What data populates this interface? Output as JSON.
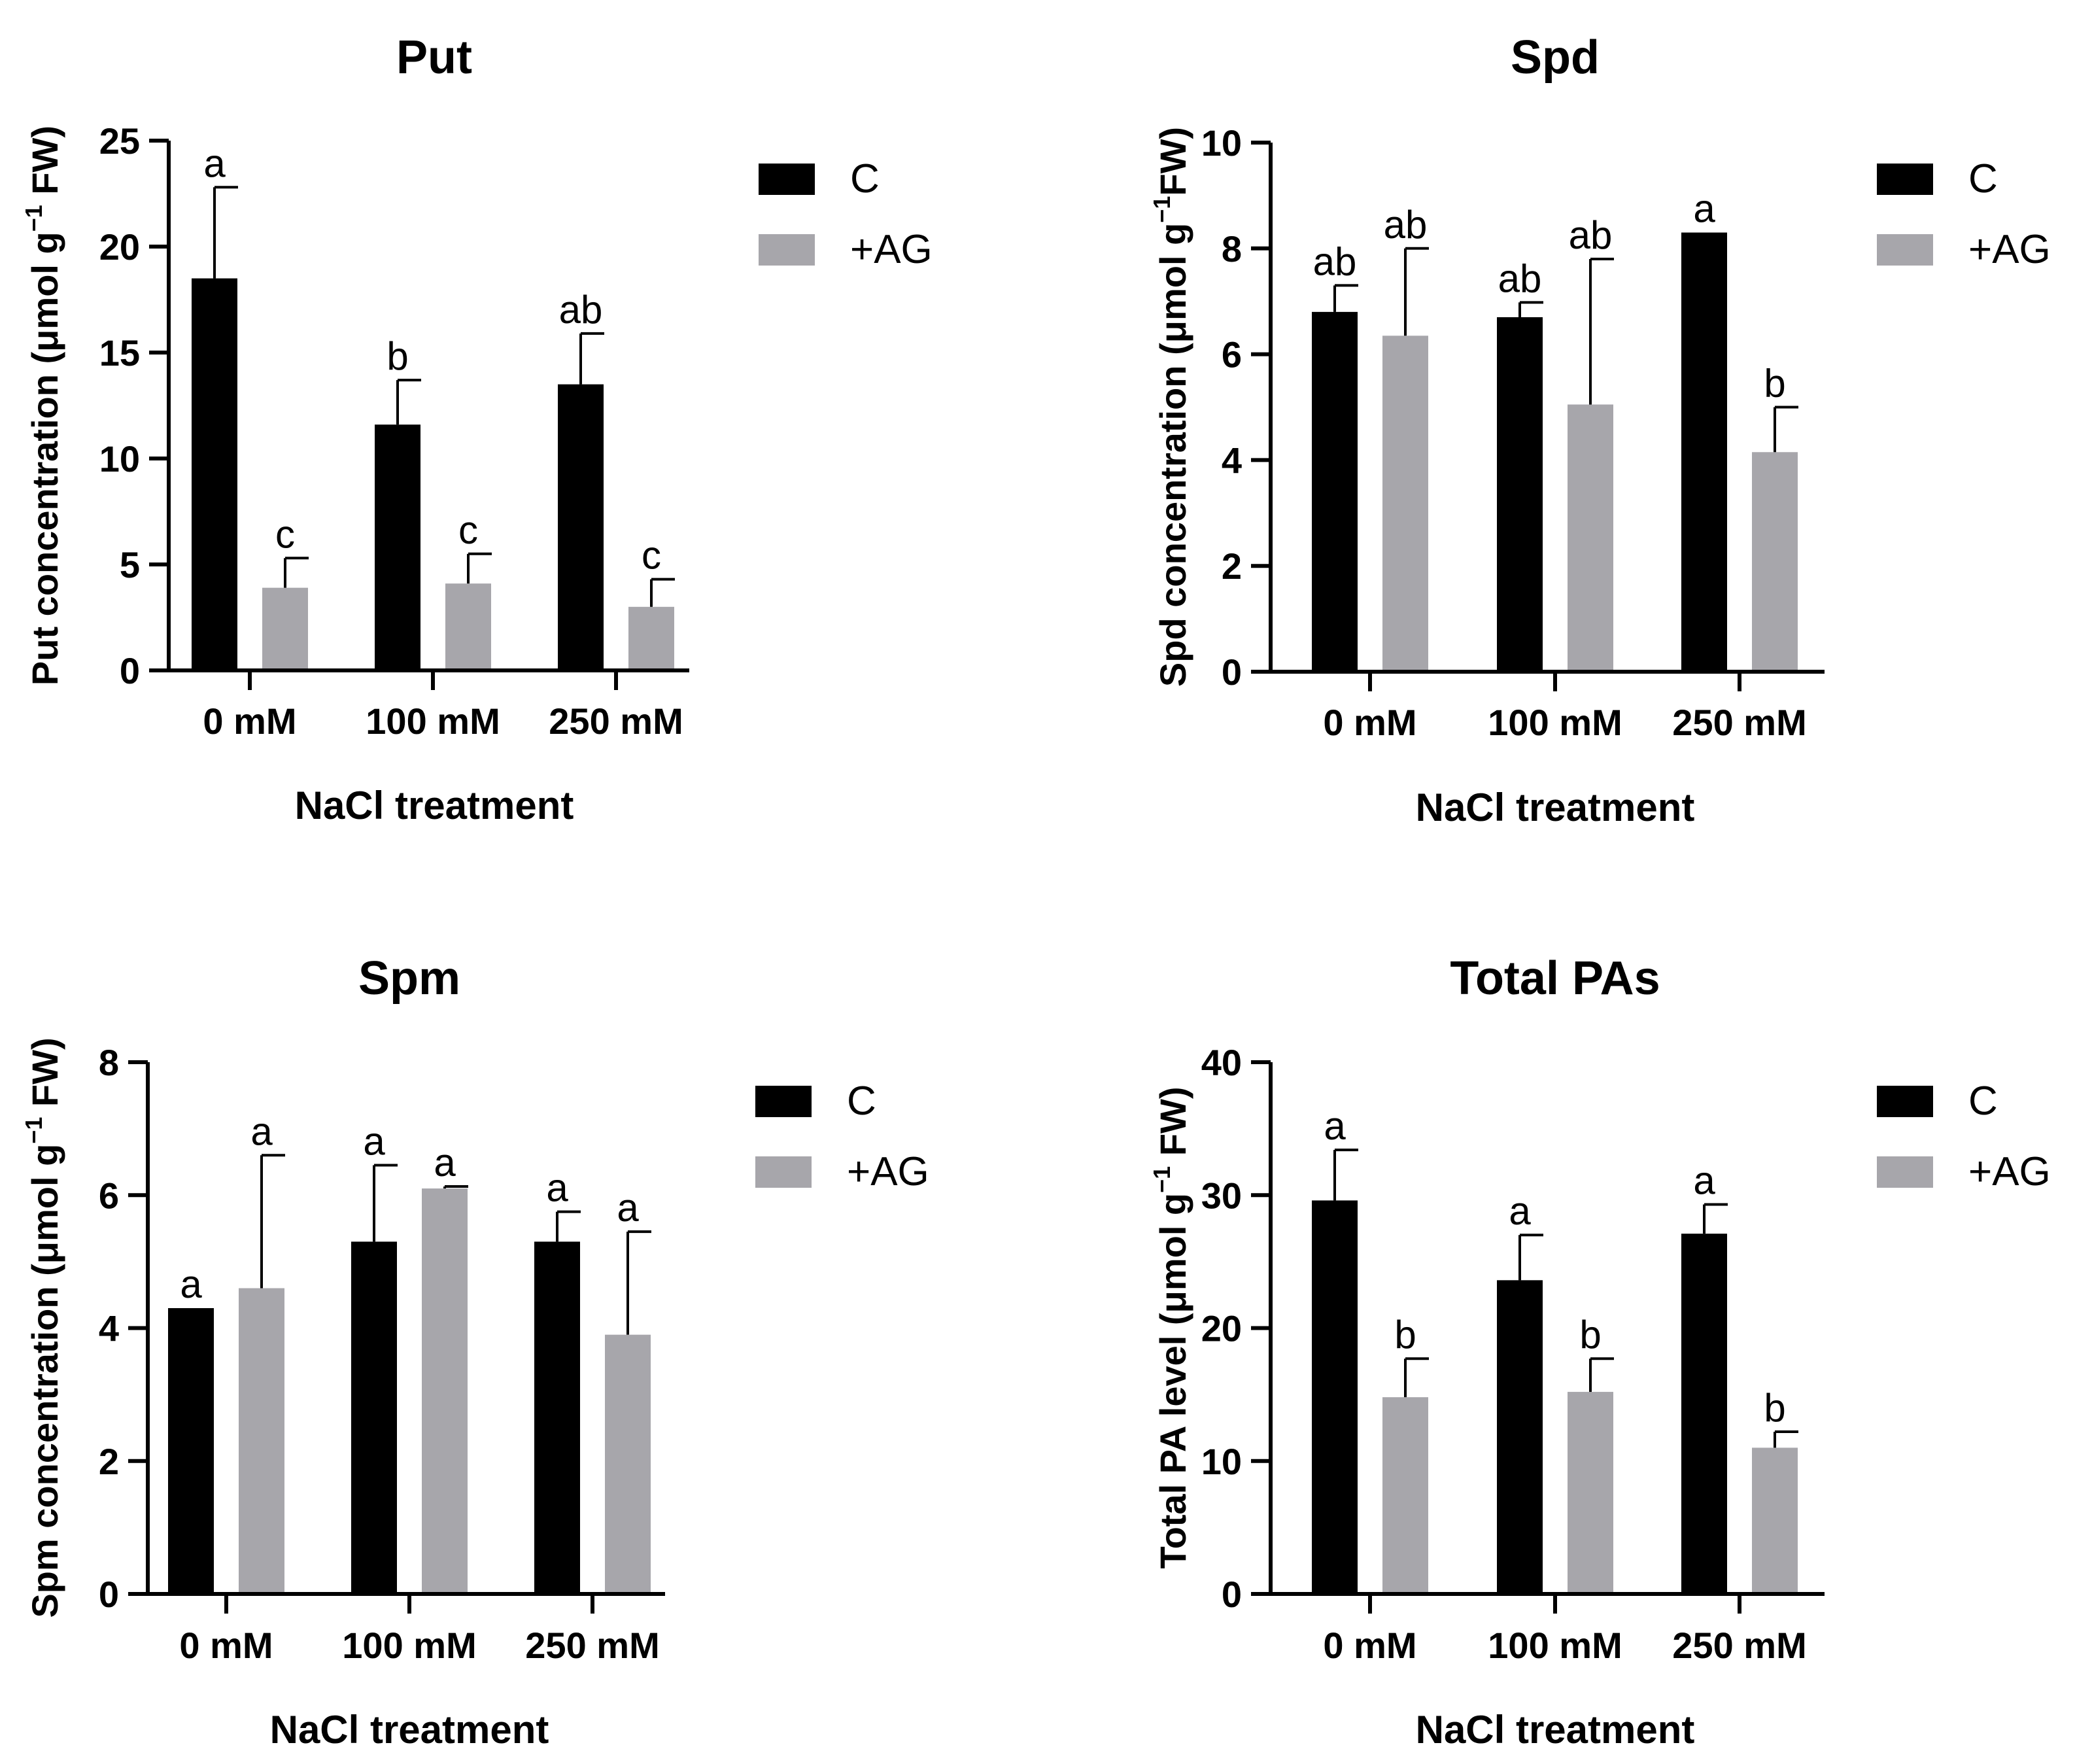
{
  "chart_data": [
    {
      "type": "bar",
      "title": "Put",
      "ylabel": {
        "pre": "Put concentration (μmol g",
        "sup": "−1",
        "post": " FW)"
      },
      "xlabel": "NaCl treatment",
      "categories": [
        "0 mM",
        "100 mM",
        "250 mM"
      ],
      "ylim": [
        0,
        25
      ],
      "yticks": [
        0,
        5,
        10,
        15,
        20,
        25
      ],
      "series": [
        {
          "name": "C",
          "color": "#000000",
          "values": [
            18.5,
            11.6,
            13.5
          ],
          "errors": [
            4.3,
            2.1,
            2.4
          ],
          "letters": [
            "a",
            "b",
            "ab"
          ]
        },
        {
          "name": "+AG",
          "color": "#a7a6ab",
          "values": [
            3.9,
            4.1,
            3.0
          ],
          "errors": [
            1.4,
            1.4,
            1.3
          ],
          "letters": [
            "c",
            "c",
            "c"
          ]
        }
      ]
    },
    {
      "type": "bar",
      "title": "Spd",
      "ylabel": {
        "pre": "Spd concentration (μmol g",
        "sup": "−1",
        "post": "FW)"
      },
      "xlabel": "NaCl treatment",
      "categories": [
        "0 mM",
        "100 mM",
        "250 mM"
      ],
      "ylim": [
        0,
        10
      ],
      "yticks": [
        0,
        2,
        4,
        6,
        8,
        10
      ],
      "series": [
        {
          "name": "C",
          "color": "#000000",
          "values": [
            6.8,
            6.7,
            8.3
          ],
          "errors": [
            0.5,
            0.28,
            0.0
          ],
          "letters": [
            "ab",
            "ab",
            "a"
          ]
        },
        {
          "name": "+AG",
          "color": "#a7a6ab",
          "values": [
            6.35,
            5.05,
            4.15
          ],
          "errors": [
            1.65,
            2.75,
            0.85
          ],
          "letters": [
            "ab",
            "ab",
            "b"
          ]
        }
      ]
    },
    {
      "type": "bar",
      "title": "Spm",
      "ylabel": {
        "pre": "Spm concentration (μmol g",
        "sup": "−1",
        "post": " FW)"
      },
      "xlabel": "NaCl treatment",
      "categories": [
        "0 mM",
        "100 mM",
        "250 mM"
      ],
      "ylim": [
        0,
        8
      ],
      "yticks": [
        0,
        2,
        4,
        6,
        8
      ],
      "series": [
        {
          "name": "C",
          "color": "#000000",
          "values": [
            4.3,
            5.3,
            5.3
          ],
          "errors": [
            0.0,
            1.15,
            0.45
          ],
          "letters": [
            "a",
            "a",
            "a"
          ]
        },
        {
          "name": "+AG",
          "color": "#a7a6ab",
          "values": [
            4.6,
            6.1,
            3.9
          ],
          "errors": [
            2.0,
            0.03,
            1.55
          ],
          "letters": [
            "a",
            "a",
            "a"
          ]
        }
      ]
    },
    {
      "type": "bar",
      "title": "Total PAs",
      "ylabel": {
        "pre": "Total PA level (μmol g",
        "sup": "−1",
        "post": " FW)"
      },
      "xlabel": "NaCl treatment",
      "categories": [
        "0 mM",
        "100 mM",
        "250 mM"
      ],
      "ylim": [
        0,
        40
      ],
      "yticks": [
        0,
        10,
        20,
        30,
        40
      ],
      "series": [
        {
          "name": "C",
          "color": "#000000",
          "values": [
            29.6,
            23.6,
            27.1
          ],
          "errors": [
            3.8,
            3.4,
            2.2
          ],
          "letters": [
            "a",
            "a",
            "a"
          ]
        },
        {
          "name": "+AG",
          "color": "#a7a6ab",
          "values": [
            14.8,
            15.2,
            11.0
          ],
          "errors": [
            2.9,
            2.5,
            1.2
          ],
          "letters": [
            "b",
            "b",
            "b"
          ]
        }
      ]
    }
  ]
}
